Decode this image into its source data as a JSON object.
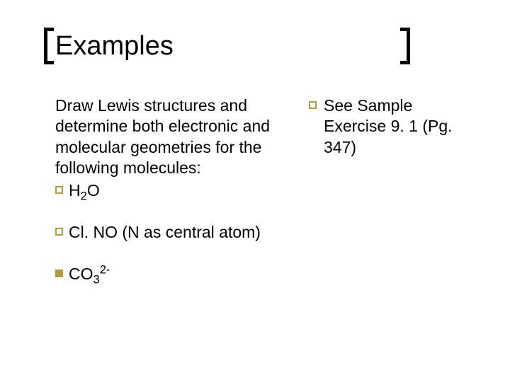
{
  "slide": {
    "title": "Examples",
    "title_fontsize": 38,
    "body_fontsize": 23,
    "bullet_color": "#b39a3a",
    "text_color": "#000000",
    "background_color": "#ffffff",
    "bracket_color": "#000000",
    "left": {
      "intro": "Draw Lewis structures and determine both electronic and molecular geometries for the following molecules:",
      "items": [
        {
          "formula_html": "H<sub>2</sub>O",
          "suffix": "",
          "bullet": "hollow"
        },
        {
          "formula_html": "Cl. NO",
          "suffix": " (N as central atom)",
          "bullet": "hollow"
        },
        {
          "formula_html": "CO<sub>3</sub><sup>2-</sup>",
          "suffix": "",
          "bullet": "filled"
        }
      ]
    },
    "right": {
      "items": [
        {
          "text": "See Sample Exercise 9. 1 (Pg. 347)",
          "bullet": "hollow"
        }
      ]
    }
  }
}
